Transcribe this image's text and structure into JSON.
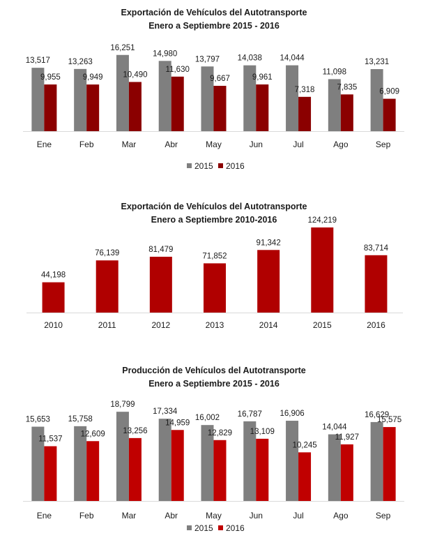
{
  "chart_data": [
    {
      "type": "bar",
      "title": "Exportación de Vehículos del Autotransporte",
      "subtitle": "Enero a Septiembre 2015 - 2016",
      "categories": [
        "Ene",
        "Feb",
        "Mar",
        "Abr",
        "May",
        "Jun",
        "Jul",
        "Ago",
        "Sep"
      ],
      "series": [
        {
          "name": "2015",
          "color": "#7f7f7f",
          "values": [
            13517,
            13263,
            16251,
            14980,
            13797,
            14038,
            14044,
            11098,
            13231
          ],
          "labels": [
            "13,517",
            "13,263",
            "16,251",
            "14,980",
            "13,797",
            "14,038",
            "14,044",
            "11,098",
            "13,231"
          ]
        },
        {
          "name": "2016",
          "color": "#8b0000",
          "values": [
            9955,
            9949,
            10490,
            11630,
            9667,
            9961,
            7318,
            7835,
            6909
          ],
          "labels": [
            "9,955",
            "9,949",
            "10,490",
            "11,630",
            "9,667",
            "9,961",
            "7,318",
            "7,835",
            "6,909"
          ]
        }
      ],
      "ylim": [
        0,
        18000
      ],
      "xlabel": "",
      "ylabel": "",
      "legend": "bottom-center",
      "grid": false
    },
    {
      "type": "bar",
      "title": "Exportación de Vehículos del Autotransporte",
      "subtitle": "Enero a Septiembre 2010-2016",
      "categories": [
        "2010",
        "2011",
        "2012",
        "2013",
        "2014",
        "2015",
        "2016"
      ],
      "series": [
        {
          "name": "Exportación",
          "color": "#b00000",
          "values": [
            44198,
            76139,
            81479,
            71852,
            91342,
            124219,
            83714
          ],
          "labels": [
            "44,198",
            "76,139",
            "81,479",
            "71,852",
            "91,342",
            "124,219",
            "83,714"
          ]
        }
      ],
      "ylim": [
        0,
        124219
      ],
      "xlabel": "",
      "ylabel": "",
      "legend": "none",
      "grid": false
    },
    {
      "type": "bar",
      "title": "Producción de Vehículos del Autotransporte",
      "subtitle": "Enero a Septiembre 2015 - 2016",
      "categories": [
        "Ene",
        "Feb",
        "Mar",
        "Abr",
        "May",
        "Jun",
        "Jul",
        "Ago",
        "Sep"
      ],
      "series": [
        {
          "name": "2015",
          "color": "#7f7f7f",
          "values": [
            15653,
            15758,
            18799,
            17334,
            16002,
            16787,
            16906,
            14044,
            16629
          ],
          "labels": [
            "15,653",
            "15,758",
            "18,799",
            "17,334",
            "16,002",
            "16,787",
            "16,906",
            "14,044",
            "16,629"
          ]
        },
        {
          "name": "2016",
          "color": "#c00000",
          "values": [
            11537,
            12609,
            13256,
            14959,
            12829,
            13109,
            10245,
            11927,
            15575
          ],
          "labels": [
            "11,537",
            "12,609",
            "13,256",
            "14,959",
            "12,829",
            "13,109",
            "10,245",
            "11,927",
            "15,575"
          ]
        }
      ],
      "ylim": [
        0,
        20000
      ],
      "xlabel": "",
      "ylabel": "",
      "legend": "bottom-center",
      "grid": false
    }
  ]
}
